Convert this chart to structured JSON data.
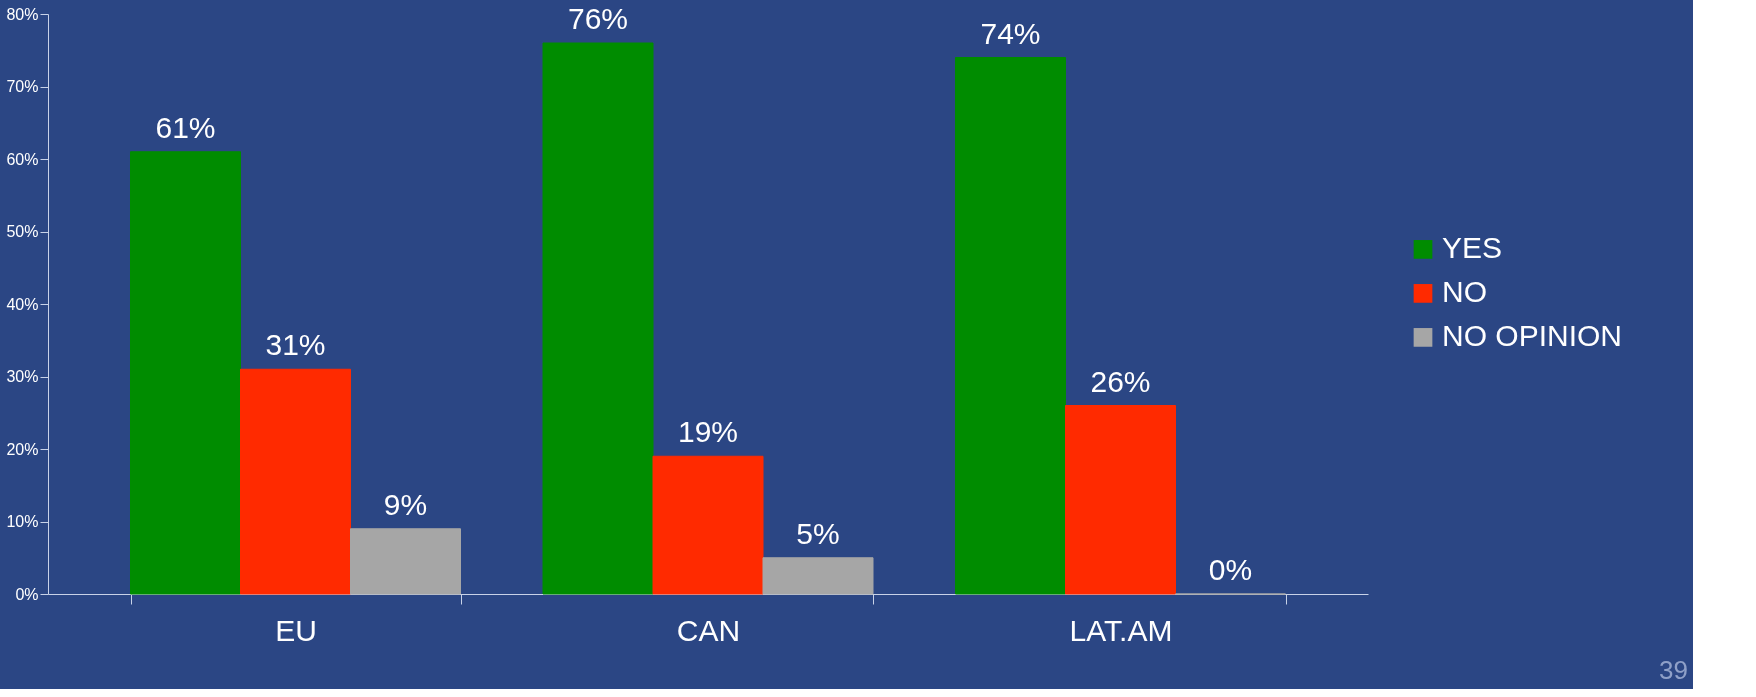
{
  "chart_data": {
    "type": "bar",
    "categories": [
      "EU",
      "CAN",
      "LAT.AM"
    ],
    "series": [
      {
        "name": "YES",
        "color": "#008c00",
        "values": [
          61,
          76,
          74
        ],
        "value_labels": [
          "61%",
          "76%",
          "74%"
        ]
      },
      {
        "name": "NO",
        "color": "#ff2a00",
        "values": [
          31,
          19,
          26
        ],
        "value_labels": [
          "31%",
          "19%",
          "26%"
        ]
      },
      {
        "name": "NO OPINION",
        "color": "#a6a6a6",
        "values": [
          9,
          5,
          0
        ],
        "value_labels": [
          "9%",
          "5%",
          "0%"
        ]
      }
    ],
    "ylim": [
      0,
      80
    ],
    "yticks": [
      {
        "value": 0,
        "label": "0%"
      },
      {
        "value": 10,
        "label": "10%"
      },
      {
        "value": 20,
        "label": "20%"
      },
      {
        "value": 30,
        "label": "30%"
      },
      {
        "value": 40,
        "label": "40%"
      },
      {
        "value": 50,
        "label": "50%"
      },
      {
        "value": 60,
        "label": "60%"
      },
      {
        "value": 70,
        "label": "70%"
      },
      {
        "value": 80,
        "label": "80%"
      }
    ],
    "grid": false,
    "legend": "right",
    "annotations": [
      "39"
    ]
  }
}
